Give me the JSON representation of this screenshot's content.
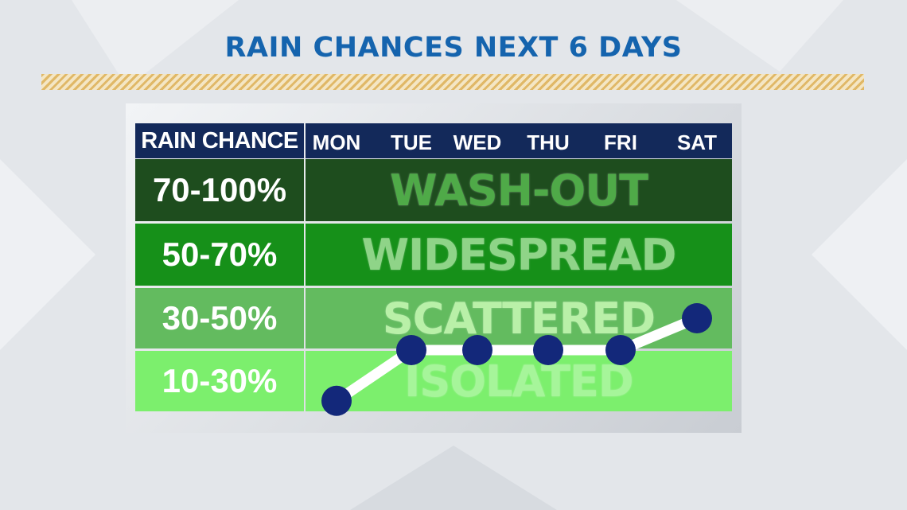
{
  "title": "RAIN CHANCES NEXT 6 DAYS",
  "header": {
    "label": "RAIN CHANCE"
  },
  "days": [
    "MON",
    "TUE",
    "WED",
    "THU",
    "FRI",
    "SAT"
  ],
  "rows": [
    {
      "range": "70-100%",
      "category": "WASH-OUT",
      "bg": "#1e4d1e",
      "label_bg": "#1e4d1e",
      "text_color": "#4faa48"
    },
    {
      "range": "50-70%",
      "category": "WIDESPREAD",
      "bg": "#169019",
      "label_bg": "#169019",
      "text_color": "#8fd488"
    },
    {
      "range": "30-50%",
      "category": "SCATTERED",
      "bg": "#63bb5f",
      "label_bg": "#63bb5f",
      "text_color": "#b9f0a8"
    },
    {
      "range": "10-30%",
      "category": "ISOLATED",
      "bg": "#7cef6d",
      "label_bg": "#7cef6d",
      "text_color": "#a6f59a"
    }
  ],
  "colors": {
    "title": "#1564ae",
    "header_bg": "#13295a",
    "dot": "#13287a",
    "line": "#ffffff"
  },
  "chart_data": {
    "type": "line",
    "title": "RAIN CHANCES NEXT 6 DAYS",
    "categories": [
      "MON",
      "TUE",
      "WED",
      "THU",
      "FRI",
      "SAT"
    ],
    "ylabel": "RAIN CHANCE",
    "y_bands": [
      "10-30%",
      "30-50%",
      "50-70%",
      "70-100%"
    ],
    "band_names": [
      "ISOLATED",
      "SCATTERED",
      "WIDESPREAD",
      "WASH-OUT"
    ],
    "values": [
      15,
      30,
      30,
      30,
      30,
      40
    ],
    "ylim": [
      10,
      100
    ],
    "grid": false
  }
}
